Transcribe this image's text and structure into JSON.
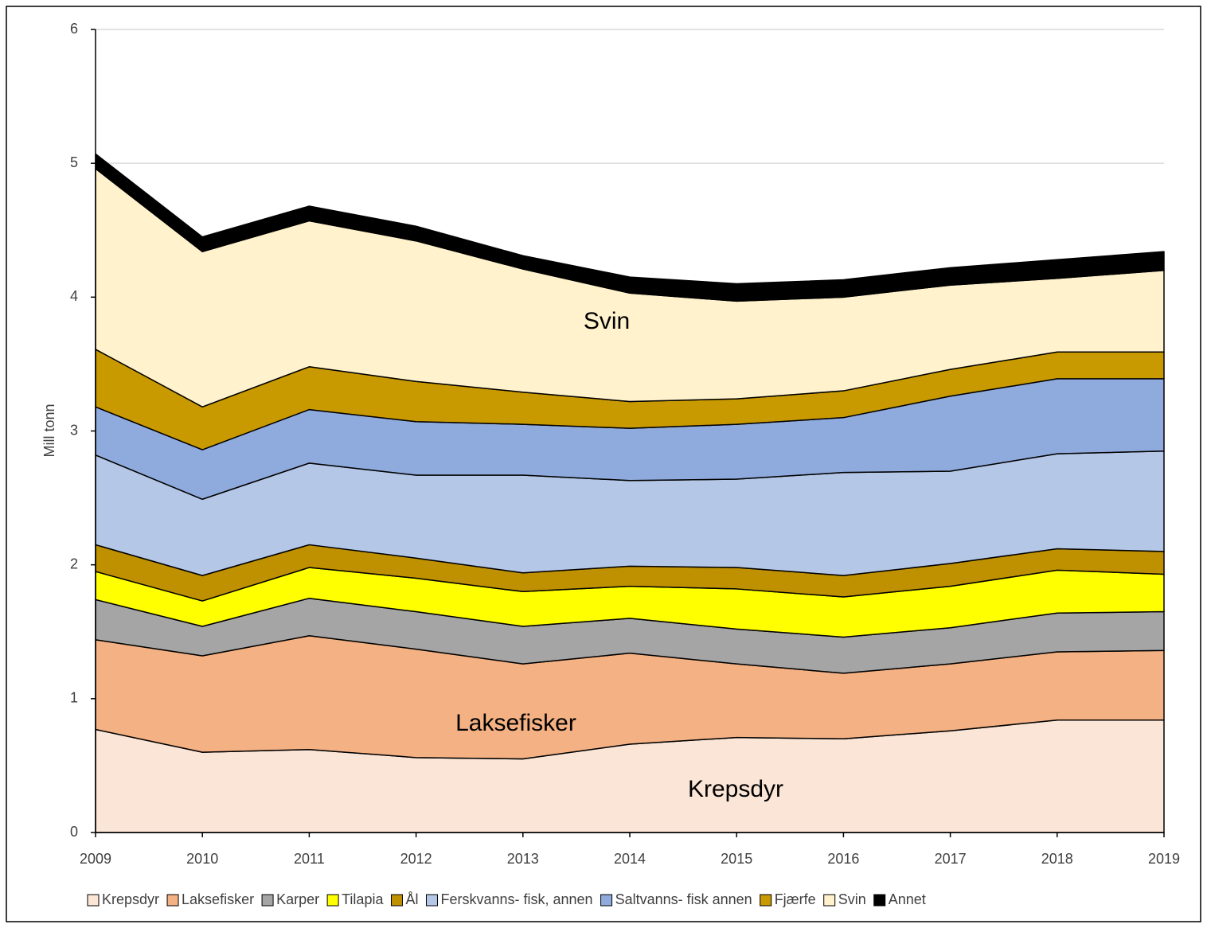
{
  "chart_data": {
    "type": "stacked_area",
    "y_label": "Mill tonn",
    "x": [
      2009,
      2010,
      2011,
      2012,
      2013,
      2014,
      2015,
      2016,
      2017,
      2018,
      2019
    ],
    "xlim": [
      2009,
      2019
    ],
    "xticks": [
      2009,
      2010,
      2011,
      2012,
      2013,
      2014,
      2015,
      2016,
      2017,
      2018,
      2019
    ],
    "ylim": [
      0,
      6
    ],
    "yticks": [
      0,
      1,
      2,
      3,
      4,
      5,
      6
    ],
    "grid": true,
    "legend": "bottom",
    "annotations": [
      "Svin",
      "Laksefisker",
      "Krepsdyr"
    ],
    "series": [
      {
        "name": "Krepsdyr",
        "color": "#fbe5d6",
        "values": [
          0.77,
          0.6,
          0.62,
          0.56,
          0.55,
          0.66,
          0.71,
          0.7,
          0.76,
          0.84,
          0.84
        ]
      },
      {
        "name": "Laksefisker",
        "color": "#f4b183",
        "values": [
          0.67,
          0.72,
          0.85,
          0.81,
          0.71,
          0.68,
          0.55,
          0.49,
          0.5,
          0.51,
          0.52
        ]
      },
      {
        "name": "Karper",
        "color": "#a5a5a5",
        "values": [
          0.3,
          0.22,
          0.28,
          0.28,
          0.28,
          0.26,
          0.26,
          0.27,
          0.27,
          0.29,
          0.29
        ]
      },
      {
        "name": "Tilapia",
        "color": "#ffff00",
        "values": [
          0.21,
          0.19,
          0.23,
          0.25,
          0.26,
          0.24,
          0.3,
          0.3,
          0.31,
          0.32,
          0.28
        ]
      },
      {
        "name": "Ål",
        "color": "#bf9000",
        "values": [
          0.2,
          0.19,
          0.17,
          0.15,
          0.14,
          0.15,
          0.16,
          0.16,
          0.17,
          0.16,
          0.17
        ]
      },
      {
        "name": "Ferskvanns- fisk, annen",
        "color": "#b4c7e7",
        "values": [
          0.67,
          0.57,
          0.61,
          0.62,
          0.73,
          0.64,
          0.66,
          0.77,
          0.69,
          0.71,
          0.75
        ]
      },
      {
        "name": "Saltvanns- fisk annen",
        "color": "#8faadc",
        "values": [
          0.36,
          0.37,
          0.4,
          0.4,
          0.38,
          0.39,
          0.41,
          0.41,
          0.56,
          0.56,
          0.54
        ]
      },
      {
        "name": "Fjærfe",
        "color": "#c99a00",
        "values": [
          0.43,
          0.32,
          0.32,
          0.3,
          0.24,
          0.2,
          0.19,
          0.2,
          0.2,
          0.2,
          0.2
        ]
      },
      {
        "name": "Svin",
        "color": "#fff2cc",
        "values": [
          1.35,
          1.16,
          1.09,
          1.05,
          0.92,
          0.81,
          0.73,
          0.7,
          0.63,
          0.55,
          0.61
        ]
      },
      {
        "name": "Annet",
        "color": "#000000",
        "values": [
          0.11,
          0.11,
          0.11,
          0.11,
          0.1,
          0.12,
          0.13,
          0.13,
          0.13,
          0.14,
          0.14
        ]
      }
    ]
  }
}
